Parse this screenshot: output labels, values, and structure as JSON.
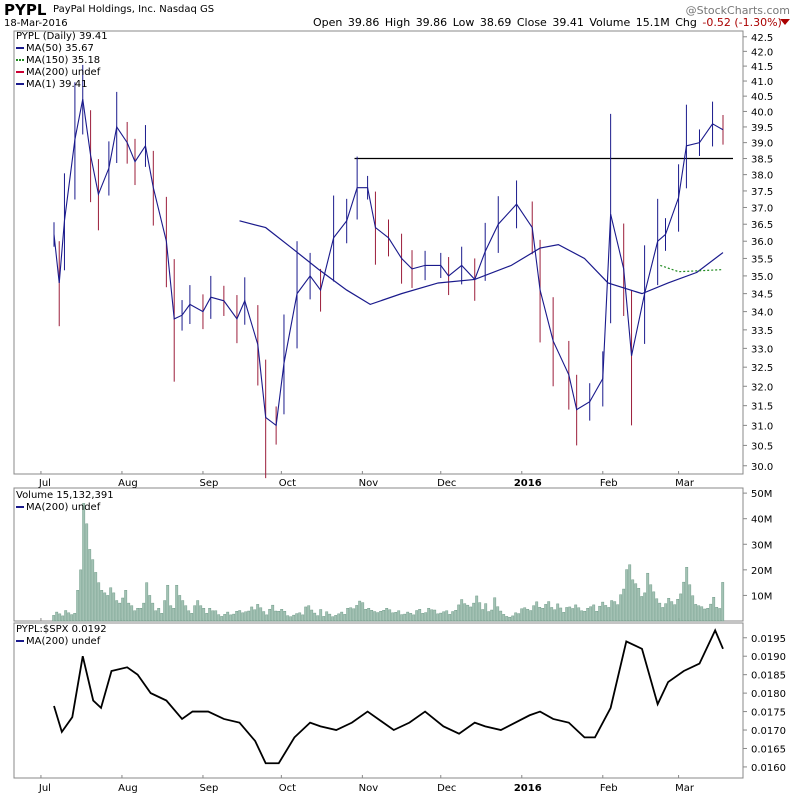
{
  "header": {
    "symbol": "PYPL",
    "company": "PayPal Holdings, Inc.  Nasdaq GS",
    "date": "18-Mar-2016",
    "open_label": "Open",
    "open": "39.86",
    "high_label": "High",
    "high": "39.86",
    "low_label": "Low",
    "low": "38.69",
    "close_label": "Close",
    "close": "39.41",
    "volume_label": "Volume",
    "volume": "15.1M",
    "chg_label": "Chg",
    "chg": "-0.52 (-1.30%)",
    "brand": "@StockCharts.com",
    "chg_color": "#aa0000"
  },
  "legend": {
    "price": "PYPL (Daily) 39.41",
    "ma50": "MA(50) 35.67",
    "ma150": "MA(150) 35.18",
    "ma200": "MA(200) undef",
    "ma1": "MA(1) 39.41",
    "volume": "Volume 15,132,391",
    "vol_ma200": "MA(200) undef",
    "ratio": "PYPL:$SPX 0.0192",
    "ratio_ma200": "MA(200) undef"
  },
  "colors": {
    "ma50": "#1a1a8c",
    "ma150": "#228b22",
    "ma200": "#cc0033",
    "ma1": "#1a1a8c",
    "up_bar": "#1a1a8c",
    "down_bar": "#9b1d3a",
    "volume_bar": "#a3c2b4",
    "resistance": "#000000"
  },
  "chart_data": [
    {
      "type": "line",
      "title": "PYPL (Daily) 39.41",
      "x_ticks": [
        "Jul",
        "Aug",
        "Sep",
        "Oct",
        "Nov",
        "Dec",
        "2016",
        "Feb",
        "Mar"
      ],
      "y_ticks": [
        "30.0",
        "30.5",
        "31.0",
        "31.5",
        "32.0",
        "32.5",
        "33.0",
        "33.5",
        "34.0",
        "34.5",
        "35.0",
        "35.5",
        "36.0",
        "36.5",
        "37.0",
        "37.5",
        "38.0",
        "38.5",
        "39.0",
        "39.5",
        "40.0",
        "40.5",
        "41.0",
        "41.5",
        "42.0",
        "42.5"
      ],
      "ylim": [
        29.8,
        42.7
      ],
      "scale": "log",
      "resistance_level": 38.5,
      "series": [
        {
          "name": "MA(1) 39.41",
          "x": [
            "2015-07-06",
            "2015-07-08",
            "2015-07-10",
            "2015-07-14",
            "2015-07-17",
            "2015-07-20",
            "2015-07-23",
            "2015-07-27",
            "2015-07-30",
            "2015-08-03",
            "2015-08-06",
            "2015-08-10",
            "2015-08-13",
            "2015-08-18",
            "2015-08-21",
            "2015-08-24",
            "2015-08-27",
            "2015-09-01",
            "2015-09-04",
            "2015-09-09",
            "2015-09-14",
            "2015-09-17",
            "2015-09-22",
            "2015-09-25",
            "2015-09-29",
            "2015-10-02",
            "2015-10-07",
            "2015-10-12",
            "2015-10-16",
            "2015-10-21",
            "2015-10-26",
            "2015-10-30",
            "2015-11-03",
            "2015-11-06",
            "2015-11-11",
            "2015-11-16",
            "2015-11-20",
            "2015-11-25",
            "2015-12-01",
            "2015-12-04",
            "2015-12-09",
            "2015-12-14",
            "2015-12-18",
            "2015-12-23",
            "2015-12-30",
            "2016-01-05",
            "2016-01-08",
            "2016-01-13",
            "2016-01-19",
            "2016-01-22",
            "2016-01-27",
            "2016-02-01",
            "2016-02-04",
            "2016-02-09",
            "2016-02-12",
            "2016-02-17",
            "2016-02-22",
            "2016-02-25",
            "2016-03-01",
            "2016-03-04",
            "2016-03-09",
            "2016-03-14",
            "2016-03-18"
          ],
          "values": [
            36.2,
            34.8,
            36.6,
            39.1,
            40.4,
            38.6,
            37.4,
            38.2,
            39.5,
            39.0,
            38.4,
            38.9,
            37.6,
            36.0,
            33.8,
            33.9,
            34.2,
            34.0,
            34.4,
            34.3,
            33.8,
            34.3,
            33.1,
            31.2,
            31.0,
            32.6,
            34.5,
            35.0,
            34.6,
            36.1,
            36.6,
            37.6,
            37.6,
            36.4,
            36.1,
            35.5,
            35.2,
            35.3,
            35.3,
            35.0,
            35.3,
            34.9,
            35.7,
            36.5,
            37.1,
            36.4,
            34.6,
            33.2,
            32.3,
            31.4,
            31.6,
            32.2,
            36.8,
            35.2,
            32.8,
            34.5,
            36.0,
            36.2,
            37.3,
            38.9,
            39.0,
            39.6,
            39.41
          ]
        },
        {
          "name": "MA(50) 35.67",
          "x": [
            "2015-09-15",
            "2015-09-25",
            "2015-10-05",
            "2015-10-15",
            "2015-10-26",
            "2015-11-04",
            "2015-11-16",
            "2015-11-30",
            "2015-12-14",
            "2015-12-28",
            "2016-01-08",
            "2016-01-15",
            "2016-01-25",
            "2016-02-03",
            "2016-02-16",
            "2016-02-26",
            "2016-03-08",
            "2016-03-18"
          ],
          "values": [
            36.6,
            36.4,
            35.8,
            35.2,
            34.6,
            34.2,
            34.5,
            34.8,
            34.9,
            35.3,
            35.8,
            35.9,
            35.5,
            34.8,
            34.5,
            34.8,
            35.1,
            35.67
          ]
        },
        {
          "name": "MA(150) 35.18",
          "x": [
            "2016-02-23",
            "2016-03-01",
            "2016-03-10",
            "2016-03-18"
          ],
          "values": [
            35.3,
            35.12,
            35.15,
            35.18
          ]
        }
      ]
    },
    {
      "type": "bar",
      "title": "Volume 15,132,391",
      "y_ticks": [
        "10M",
        "20M",
        "30M",
        "40M",
        "50M"
      ],
      "ylim": [
        0,
        52
      ],
      "unit": "M",
      "values": [
        2.2,
        3.5,
        2.8,
        2.0,
        4.1,
        3.2,
        2.5,
        3.0,
        12,
        20,
        46,
        38,
        28,
        24,
        19,
        15,
        12,
        11,
        10,
        13,
        11,
        8,
        7,
        9,
        12,
        7,
        6,
        4,
        5,
        5,
        7,
        15,
        10,
        7,
        4,
        5,
        3,
        8,
        14,
        6,
        5,
        14,
        10,
        8,
        6,
        4,
        3,
        6,
        8,
        6,
        5,
        3,
        5,
        4,
        4,
        2.5,
        1.8,
        2.6,
        3.5,
        2.4,
        2.7,
        3.8,
        4.1,
        3.2,
        3.6,
        3.9,
        5.5,
        4.4,
        6.5,
        5.2,
        3.7,
        2.4,
        4.6,
        6.2,
        3.9,
        3.8,
        4.6,
        3.8,
        2.1,
        1.7,
        2.3,
        2.9,
        3.2,
        2.4,
        5.5,
        6.0,
        4.3,
        3.1,
        2.1,
        4.5,
        1.8,
        3.6,
        2.7,
        1.7,
        2.2,
        2.8,
        3.5,
        2.6,
        5.0,
        5.2,
        4.8,
        6.1,
        7.8,
        7.2,
        4.6,
        5.0,
        4.2,
        3.7,
        3.3,
        3.8,
        4.2,
        5.0,
        4.4,
        3.2,
        3.4,
        4.0,
        2.5,
        2.7,
        3.5,
        3.0,
        2.4,
        4.1,
        4.6,
        3.0,
        3.3,
        5.0,
        4.4,
        4.3,
        2.8,
        3.1,
        3.6,
        4.0,
        2.6,
        3.7,
        4.2,
        6.3,
        8.4,
        6.8,
        6.2,
        5.5,
        7.0,
        9.8,
        7.2,
        4.5,
        6.8,
        3.7,
        4.3,
        9.1,
        5.6,
        3.9,
        2.6,
        1.8,
        1.5,
        2.0,
        3.2,
        2.9,
        4.8,
        5.2,
        4.6,
        4.1,
        6.0,
        7.5,
        5.4,
        5.0,
        6.5,
        7.6,
        5.3,
        4.4,
        6.7,
        5.1,
        3.4,
        5.3,
        5.5,
        4.9,
        6.3,
        5.2,
        4.0,
        3.8,
        5.0,
        5.6,
        6.3,
        3.8,
        5.8,
        7.4,
        6.1,
        5.3,
        8.0,
        7.6,
        6.4,
        10.3,
        12.5,
        20.1,
        22.0,
        16.1,
        14.6,
        12.8,
        9.6,
        11.0,
        18.7,
        14.2,
        11.4,
        8.7,
        7.0,
        5.3,
        6.8,
        8.9,
        7.6,
        6.4,
        8.5,
        10.6,
        15.2,
        21.0,
        14.2,
        9.9,
        6.5,
        6.0,
        5.6,
        4.7,
        5.0,
        6.6,
        9.3,
        5.4,
        4.9,
        15.1
      ]
    },
    {
      "type": "line",
      "title": "PYPL:$SPX 0.0192",
      "y_ticks": [
        "0.0160",
        "0.0165",
        "0.0170",
        "0.0175",
        "0.0180",
        "0.0185",
        "0.0190",
        "0.0195"
      ],
      "ylim": [
        0.0157,
        0.0199
      ],
      "x": [
        "2015-07-06",
        "2015-07-09",
        "2015-07-13",
        "2015-07-17",
        "2015-07-21",
        "2015-07-24",
        "2015-07-28",
        "2015-08-03",
        "2015-08-07",
        "2015-08-12",
        "2015-08-18",
        "2015-08-24",
        "2015-08-28",
        "2015-09-03",
        "2015-09-09",
        "2015-09-15",
        "2015-09-21",
        "2015-09-25",
        "2015-09-30",
        "2015-10-06",
        "2015-10-12",
        "2015-10-16",
        "2015-10-22",
        "2015-10-28",
        "2015-11-03",
        "2015-11-09",
        "2015-11-13",
        "2015-11-19",
        "2015-11-25",
        "2015-12-02",
        "2015-12-08",
        "2015-12-14",
        "2015-12-18",
        "2015-12-24",
        "2016-01-04",
        "2016-01-08",
        "2016-01-13",
        "2016-01-19",
        "2016-01-25",
        "2016-01-29",
        "2016-02-04",
        "2016-02-10",
        "2016-02-16",
        "2016-02-22",
        "2016-02-26",
        "2016-03-03",
        "2016-03-09",
        "2016-03-15",
        "2016-03-18"
      ],
      "values": [
        0.01765,
        0.01695,
        0.01735,
        0.019,
        0.0178,
        0.0176,
        0.0186,
        0.0187,
        0.0185,
        0.018,
        0.0178,
        0.0173,
        0.0175,
        0.0175,
        0.0173,
        0.0172,
        0.0167,
        0.0161,
        0.0161,
        0.0168,
        0.0172,
        0.0171,
        0.017,
        0.0172,
        0.0175,
        0.0172,
        0.017,
        0.0172,
        0.0175,
        0.0171,
        0.0169,
        0.0172,
        0.0171,
        0.017,
        0.0174,
        0.0175,
        0.0173,
        0.0172,
        0.0168,
        0.0168,
        0.0176,
        0.0194,
        0.0192,
        0.0177,
        0.0183,
        0.0186,
        0.0188,
        0.0197,
        0.0192
      ]
    }
  ]
}
